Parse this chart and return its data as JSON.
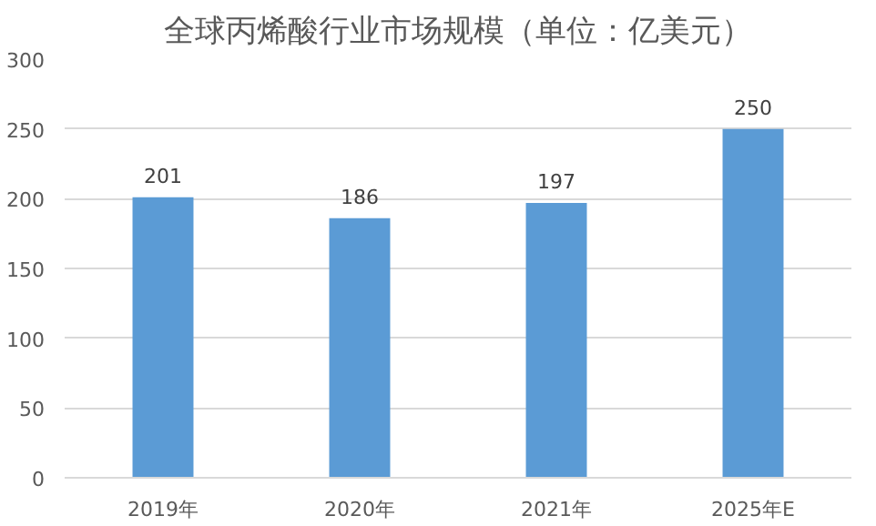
{
  "chart_data": {
    "type": "bar",
    "title": "全球丙烯酸行业市场规模（单位：亿美元）",
    "categories": [
      "2019年",
      "2020年",
      "2021年",
      "2025年E"
    ],
    "values": [
      201,
      186,
      197,
      250
    ],
    "color": "#5b9bd5",
    "ylim": [
      0,
      300
    ],
    "yticks": [
      0,
      50,
      100,
      150,
      200,
      250,
      300
    ],
    "grid": "y",
    "data_labels": true
  }
}
